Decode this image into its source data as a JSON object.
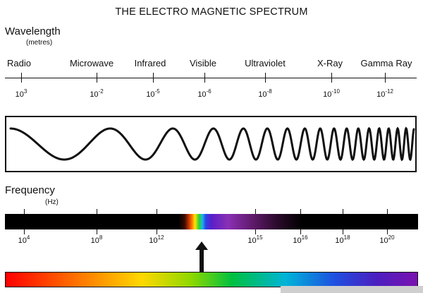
{
  "title": "THE ELECTRO MAGNETIC SPECTRUM",
  "wavelength": {
    "label": "Wavelength",
    "unit": "(metres)",
    "bands": [
      {
        "name": "Radio",
        "key": "radio"
      },
      {
        "name": "Microwave",
        "key": "microwave"
      },
      {
        "name": "Infrared",
        "key": "infrared"
      },
      {
        "name": "Visible",
        "key": "visible"
      },
      {
        "name": "Ultraviolet",
        "key": "ultraviolet"
      },
      {
        "name": "X-Ray",
        "key": "x-ray"
      },
      {
        "name": "Gamma Ray",
        "key": "gamma-ray"
      }
    ],
    "ticks": [
      {
        "base": "10",
        "exp": "3"
      },
      {
        "base": "10",
        "exp": "-2"
      },
      {
        "base": "10",
        "exp": "-5"
      },
      {
        "base": "10",
        "exp": "-6"
      },
      {
        "base": "10",
        "exp": "-8"
      },
      {
        "base": "10",
        "exp": "-10"
      },
      {
        "base": "10",
        "exp": "-12"
      }
    ]
  },
  "frequency": {
    "label": "Frequency",
    "unit": "(Hz)",
    "ticks": [
      {
        "base": "10",
        "exp": "4"
      },
      {
        "base": "10",
        "exp": "8"
      },
      {
        "base": "10",
        "exp": "12"
      },
      {
        "base": "10",
        "exp": "15"
      },
      {
        "base": "10",
        "exp": "16"
      },
      {
        "base": "10",
        "exp": "18"
      },
      {
        "base": "10",
        "exp": "20"
      }
    ]
  },
  "colors": {
    "ink": "#111111",
    "background": "#ffffff"
  }
}
